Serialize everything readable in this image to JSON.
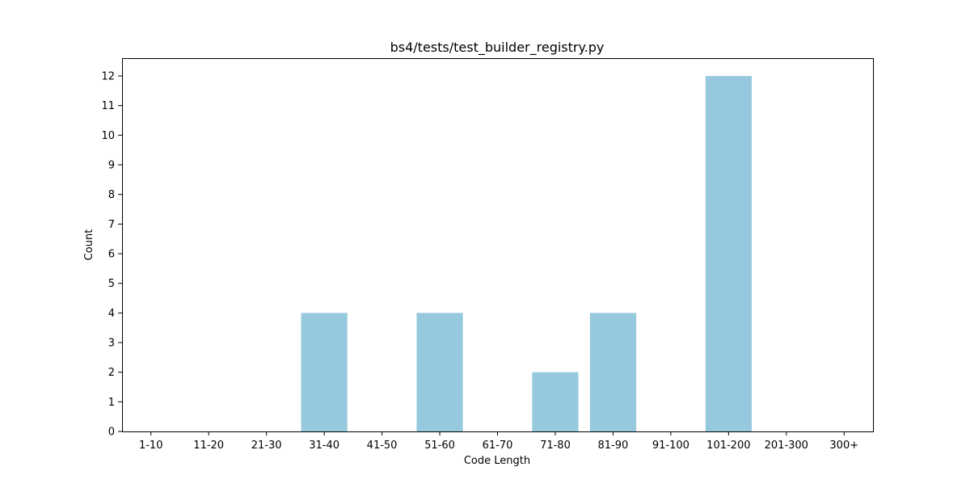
{
  "chart_data": {
    "type": "bar",
    "title": "bs4/tests/test_builder_registry.py",
    "xlabel": "Code Length",
    "ylabel": "Count",
    "categories": [
      "1-10",
      "11-20",
      "21-30",
      "31-40",
      "41-50",
      "51-60",
      "61-70",
      "71-80",
      "81-90",
      "91-100",
      "101-200",
      "201-300",
      "300+"
    ],
    "values": [
      0,
      0,
      0,
      4,
      0,
      4,
      0,
      2,
      4,
      0,
      12,
      0,
      0
    ],
    "ylim": [
      0,
      12.6
    ],
    "yticks": [
      0,
      1,
      2,
      3,
      4,
      5,
      6,
      7,
      8,
      9,
      10,
      11,
      12
    ],
    "grid": false,
    "bar_color": "#96c9dd",
    "axes_color": "#000000"
  }
}
